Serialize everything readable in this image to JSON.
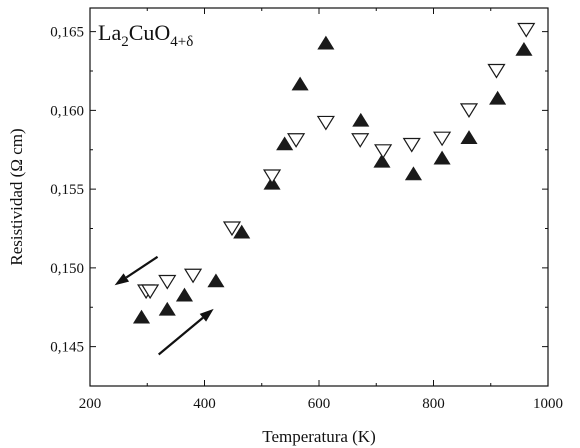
{
  "chart_data": {
    "type": "scatter",
    "xlabel": "Temperatura (K)",
    "ylabel": "Resistividad (Ω cm)",
    "xlim": [
      200,
      1000
    ],
    "ylim": [
      0.1425,
      0.1665
    ],
    "x_ticks": [
      {
        "value": 200,
        "label": "200"
      },
      {
        "value": 400,
        "label": "400"
      },
      {
        "value": 600,
        "label": "600"
      },
      {
        "value": 800,
        "label": "800"
      },
      {
        "value": 1000,
        "label": "1000"
      }
    ],
    "y_ticks": [
      {
        "value": 0.145,
        "label": "0,145"
      },
      {
        "value": 0.15,
        "label": "0,150"
      },
      {
        "value": 0.155,
        "label": "0,155"
      },
      {
        "value": 0.16,
        "label": "0,160"
      },
      {
        "value": 0.165,
        "label": "0,165"
      }
    ],
    "grid": false,
    "annotation": {
      "formula_base": "La",
      "formula_sub1": "2",
      "formula_mid": "CuO",
      "formula_sub2": "4+δ"
    },
    "arrows": [
      {
        "direction": "cooling",
        "from": [
          318,
          0.1507
        ],
        "to": [
          243,
          0.1489
        ]
      },
      {
        "direction": "heating",
        "from": [
          320,
          0.1445
        ],
        "to": [
          416,
          0.1474
        ]
      }
    ],
    "series": [
      {
        "marker": "filled-triangle-up",
        "color": "#1a1a1a",
        "points": [
          [
            290,
            0.1468
          ],
          [
            335,
            0.1473
          ],
          [
            365,
            0.1482
          ],
          [
            420,
            0.1491
          ],
          [
            465,
            0.1522
          ],
          [
            518,
            0.1553
          ],
          [
            540,
            0.1578
          ],
          [
            567,
            0.1616
          ],
          [
            612,
            0.1642
          ],
          [
            673,
            0.1593
          ],
          [
            710,
            0.1567
          ],
          [
            765,
            0.1559
          ],
          [
            815,
            0.1569
          ],
          [
            862,
            0.1582
          ],
          [
            912,
            0.1607
          ],
          [
            958,
            0.1638
          ]
        ]
      },
      {
        "marker": "open-triangle-down",
        "color": "#1a1a1a",
        "points": [
          [
            298,
            0.1486
          ],
          [
            305,
            0.1486
          ],
          [
            335,
            0.1492
          ],
          [
            380,
            0.1496
          ],
          [
            448,
            0.1526
          ],
          [
            518,
            0.1559
          ],
          [
            560,
            0.1582
          ],
          [
            612,
            0.1593
          ],
          [
            672,
            0.1582
          ],
          [
            712,
            0.1575
          ],
          [
            762,
            0.1579
          ],
          [
            815,
            0.1583
          ],
          [
            862,
            0.1601
          ],
          [
            910,
            0.1626
          ],
          [
            962,
            0.1652
          ]
        ]
      }
    ]
  }
}
